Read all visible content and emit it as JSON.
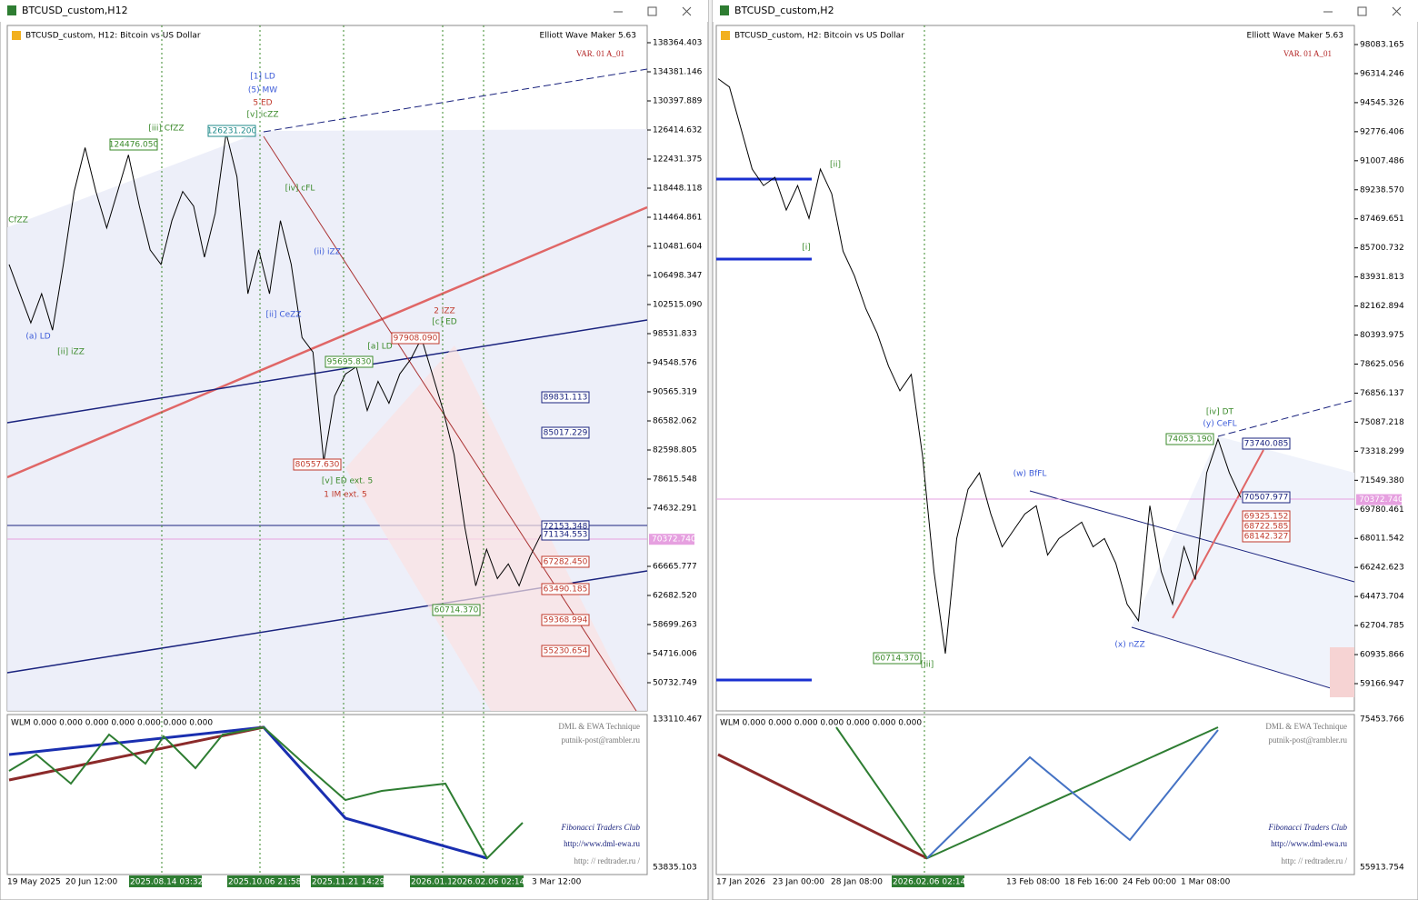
{
  "windows": [
    {
      "title": "BTCUSD_custom,H12",
      "header": "BTCUSD_custom, H12:  Bitcoin vs US Dollar",
      "indicator_name": "Elliott Wave Maker 5.63",
      "variant": "VAR. 01 A_01",
      "price_axis": [
        "138364.403",
        "134381.146",
        "130397.889",
        "126414.632",
        "122431.375",
        "118448.118",
        "114464.861",
        "110481.604",
        "106498.347",
        "102515.090",
        "98531.833",
        "94548.576",
        "90565.319",
        "86582.062",
        "82598.805",
        "78615.548",
        "74632.291",
        "66665.777",
        "62682.520",
        "58699.263",
        "54716.006",
        "50732.749"
      ],
      "current_price": "70372.740",
      "x_axis": [
        {
          "text": "19 May 2025",
          "hl": false
        },
        {
          "text": "20 Jun 12:00",
          "hl": false
        },
        {
          "text": "2025.08.14 03:32",
          "hl": true
        },
        {
          "text": "2025.10.06 21:58",
          "hl": true
        },
        {
          "text": "2025.11.21 14:29",
          "hl": true
        },
        {
          "text": "2026.01.1",
          "hl": true
        },
        {
          "text": "2026.02.06 02:14",
          "hl": true
        },
        {
          "text": "3 Mar 12:00",
          "hl": false
        }
      ],
      "annotations": [
        {
          "text": "[1] LD",
          "color": "#3b5ad8"
        },
        {
          "text": "(5) MW",
          "color": "#3b5ad8"
        },
        {
          "text": "5 ED",
          "color": "#c0392b"
        },
        {
          "text": "[v] icZZ",
          "color": "#3a8a2a"
        },
        {
          "text": "[iii] CfZZ",
          "color": "#3a8a2a"
        },
        {
          "text": "[iv] cFL",
          "color": "#3a8a2a"
        },
        {
          "text": "(ii) iZZ",
          "color": "#3b5ad8"
        },
        {
          "text": "2 iZZ",
          "color": "#c0392b"
        },
        {
          "text": "[c] ED",
          "color": "#3a8a2a"
        },
        {
          "text": "[v] ED ext. 5",
          "color": "#3a8a2a"
        },
        {
          "text": "1 IM ext. 5",
          "color": "#c0392b"
        },
        {
          "text": "[a] LD",
          "color": "#3a8a2a"
        },
        {
          "text": "(a) LD",
          "color": "#3b5ad8"
        },
        {
          "text": "[ii] iZZ",
          "color": "#3a8a2a"
        },
        {
          "text": "CfZZ",
          "color": "#3a8a2a"
        },
        {
          "text": "[ii] CeZZ",
          "color": "#3b5ad8"
        }
      ],
      "price_boxes": [
        {
          "text": "126231.200",
          "color": "#1f8a8a"
        },
        {
          "text": "124476.050",
          "color": "#3a8a2a"
        },
        {
          "text": "97908.090",
          "color": "#c0392b"
        },
        {
          "text": "95695.830",
          "color": "#3a8a2a"
        },
        {
          "text": "80557.630",
          "color": "#c0392b"
        },
        {
          "text": "60714.370",
          "color": "#3a8a2a"
        },
        {
          "text": "89831.113",
          "color": "#1a237e"
        },
        {
          "text": "85017.229",
          "color": "#1a237e"
        },
        {
          "text": "72153.348",
          "color": "#1a237e"
        },
        {
          "text": "71134.553",
          "color": "#1a237e"
        },
        {
          "text": "67282.450",
          "color": "#c0392b"
        },
        {
          "text": "63490.185",
          "color": "#c0392b"
        },
        {
          "text": "59368.994",
          "color": "#c0392b"
        },
        {
          "text": "55230.654",
          "color": "#c0392b"
        }
      ],
      "price": [
        108000,
        104000,
        100000,
        104000,
        99000,
        108000,
        118000,
        124000,
        118000,
        113000,
        118000,
        123000,
        116000,
        110000,
        108000,
        114000,
        118000,
        116000,
        109000,
        115000,
        126000,
        120000,
        104000,
        110000,
        104000,
        114000,
        108000,
        98000,
        96000,
        81000,
        90000,
        93000,
        94000,
        88000,
        92000,
        89000,
        93000,
        95000,
        97900,
        93000,
        88000,
        82000,
        72000,
        64000,
        69000,
        65000,
        67000,
        64000,
        68000,
        71000
      ],
      "indicator": {
        "label": "WLM 0.000 0.000 0.000 0.000 0.000 0.000 0.000",
        "axis": [
          "133110.467",
          "53835.103"
        ],
        "credits": [
          "DML & EWA Technique",
          "putnik-post@rambler.ru",
          "Fibonacci   Traders   Club",
          "http://www.dml-ewa.ru",
          "http: // redtrader.ru /"
        ]
      }
    },
    {
      "title": "BTCUSD_custom,H2",
      "header": "BTCUSD_custom, H2:  Bitcoin vs US Dollar",
      "indicator_name": "Elliott Wave Maker 5.63",
      "variant": "VAR. 01 A_01",
      "price_axis": [
        "98083.165",
        "96314.246",
        "94545.326",
        "92776.406",
        "91007.486",
        "89238.570",
        "87469.651",
        "85700.732",
        "83931.813",
        "82162.894",
        "80393.975",
        "78625.056",
        "76856.137",
        "75087.218",
        "73318.299",
        "71549.380",
        "69780.461",
        "68011.542",
        "66242.623",
        "64473.704",
        "62704.785",
        "60935.866",
        "59166.947"
      ],
      "current_price": "70372.740",
      "x_axis": [
        {
          "text": "17 Jan 2026",
          "hl": false
        },
        {
          "text": "23 Jan 00:00",
          "hl": false
        },
        {
          "text": "28 Jan 08:00",
          "hl": false
        },
        {
          "text": "2026.02.06 02:14",
          "hl": true
        },
        {
          "text": "13 Feb 08:00",
          "hl": false
        },
        {
          "text": "18 Feb 16:00",
          "hl": false
        },
        {
          "text": "24 Feb 00:00",
          "hl": false
        },
        {
          "text": "1 Mar 08:00",
          "hl": false
        }
      ],
      "annotations": [
        {
          "text": "[ii]",
          "color": "#3a8a2a"
        },
        {
          "text": "[i]",
          "color": "#3a8a2a"
        },
        {
          "text": "[iii]",
          "color": "#3a8a2a"
        },
        {
          "text": "(w) BfFL",
          "color": "#3b5ad8"
        },
        {
          "text": "(x) nZZ",
          "color": "#3b5ad8"
        },
        {
          "text": "[iv] DT",
          "color": "#3a8a2a"
        },
        {
          "text": "(y) CeFL",
          "color": "#3b5ad8"
        }
      ],
      "price_boxes": [
        {
          "text": "74053.190",
          "color": "#3a8a2a"
        },
        {
          "text": "73740.085",
          "color": "#1a237e"
        },
        {
          "text": "70507.977",
          "color": "#1a237e"
        },
        {
          "text": "69325.152",
          "color": "#c0392b"
        },
        {
          "text": "68722.585",
          "color": "#c0392b"
        },
        {
          "text": "68142.327",
          "color": "#c0392b"
        },
        {
          "text": "60714.370",
          "color": "#3a8a2a"
        }
      ],
      "price": [
        96000,
        95500,
        93000,
        90500,
        89500,
        90000,
        88000,
        89500,
        87500,
        90500,
        89000,
        85500,
        84000,
        82000,
        80500,
        78500,
        77000,
        78000,
        73000,
        66000,
        61000,
        68000,
        71000,
        72000,
        69500,
        67500,
        68500,
        69500,
        70000,
        67000,
        68000,
        68500,
        69000,
        67500,
        68000,
        66500,
        64000,
        63000,
        70000,
        66000,
        64000,
        67500,
        65500,
        72000,
        74050,
        72000,
        70500
      ],
      "indicator": {
        "label": "WLM 0.000 0.000 0.000 0.000 0.000 0.000 0.000",
        "axis": [
          "75453.766",
          "55913.754"
        ],
        "credits": [
          "DML & EWA Technique",
          "putnik-post@rambler.ru",
          "Fibonacci   Traders   Club",
          "http://www.dml-ewa.ru",
          "http: // redtrader.ru /"
        ]
      }
    }
  ]
}
